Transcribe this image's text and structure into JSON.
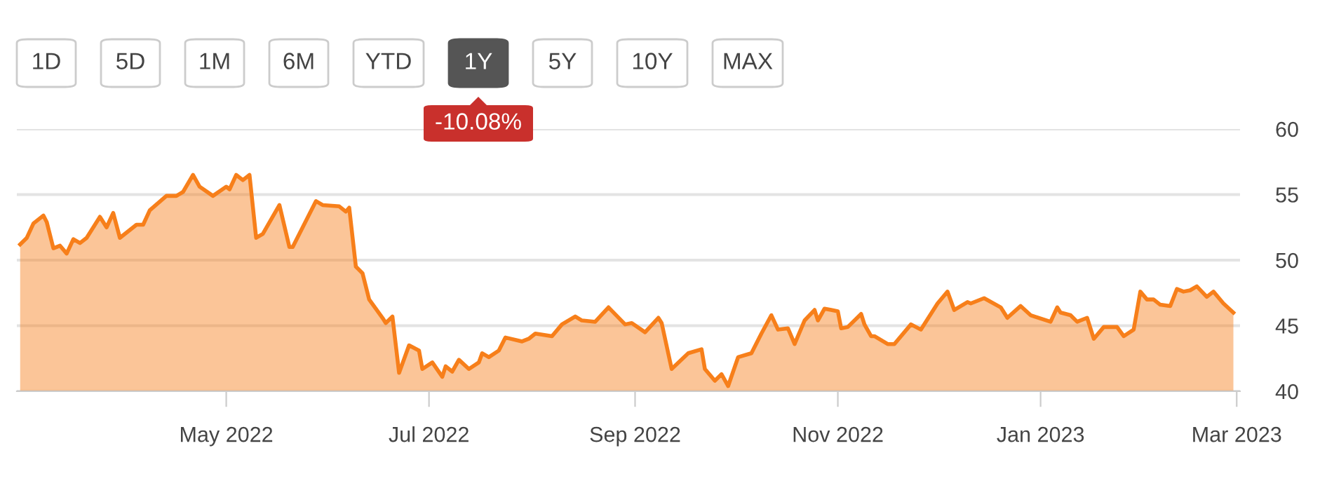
{
  "chart_data": {
    "type": "area",
    "color": "#f77f1a",
    "annotations": [
      "1D",
      "5D",
      "1M",
      "6M",
      "YTD",
      "1Y",
      "5Y",
      "10Y",
      "MAX",
      "-10.08%"
    ],
    "x": [
      "2022-02-28",
      "2022-03-02",
      "2022-03-04",
      "2022-03-07",
      "2022-03-08",
      "2022-03-10",
      "2022-03-12",
      "2022-03-14",
      "2022-03-16",
      "2022-03-18",
      "2022-03-20",
      "2022-03-24",
      "2022-03-26",
      "2022-03-28",
      "2022-03-30",
      "2022-04-04",
      "2022-04-06",
      "2022-04-08",
      "2022-04-13",
      "2022-04-16",
      "2022-04-18",
      "2022-04-21",
      "2022-04-23",
      "2022-04-27",
      "2022-05-01",
      "2022-05-02",
      "2022-05-04",
      "2022-05-06",
      "2022-05-08",
      "2022-05-10",
      "2022-05-12",
      "2022-05-17",
      "2022-05-20",
      "2022-05-21",
      "2022-05-28",
      "2022-05-30",
      "2022-06-04",
      "2022-06-06",
      "2022-06-07",
      "2022-06-09",
      "2022-06-11",
      "2022-06-13",
      "2022-06-17",
      "2022-06-18",
      "2022-06-20",
      "2022-06-22",
      "2022-06-25",
      "2022-06-28",
      "2022-06-29",
      "2022-07-02",
      "2022-07-05",
      "2022-07-06",
      "2022-07-08",
      "2022-07-10",
      "2022-07-13",
      "2022-07-16",
      "2022-07-17",
      "2022-07-19",
      "2022-07-22",
      "2022-07-24",
      "2022-07-29",
      "2022-07-31",
      "2022-08-02",
      "2022-08-07",
      "2022-08-10",
      "2022-08-14",
      "2022-08-16",
      "2022-08-20",
      "2022-08-24",
      "2022-08-29",
      "2022-08-31",
      "2022-09-04",
      "2022-09-08",
      "2022-09-09",
      "2022-09-12",
      "2022-09-17",
      "2022-09-21",
      "2022-09-22",
      "2022-09-25",
      "2022-09-27",
      "2022-09-29",
      "2022-10-02",
      "2022-10-06",
      "2022-10-09",
      "2022-10-12",
      "2022-10-14",
      "2022-10-17",
      "2022-10-19",
      "2022-10-22",
      "2022-10-25",
      "2022-10-26",
      "2022-10-28",
      "2022-10-30",
      "2022-11-01",
      "2022-11-02",
      "2022-11-04",
      "2022-11-08",
      "2022-11-09",
      "2022-11-11",
      "2022-11-12",
      "2022-11-16",
      "2022-11-18",
      "2022-11-23",
      "2022-11-26",
      "2022-12-01",
      "2022-12-04",
      "2022-12-06",
      "2022-12-10",
      "2022-12-11",
      "2022-12-13",
      "2022-12-15",
      "2022-12-20",
      "2022-12-22",
      "2022-12-26",
      "2022-12-29",
      "2023-01-04",
      "2023-01-06",
      "2023-01-07",
      "2023-01-10",
      "2023-01-12",
      "2023-01-15",
      "2023-01-17",
      "2023-01-20",
      "2023-01-24",
      "2023-01-26",
      "2023-01-29",
      "2023-01-31",
      "2023-02-02",
      "2023-02-04",
      "2023-02-06",
      "2023-02-09",
      "2023-02-11",
      "2023-02-13",
      "2023-02-15",
      "2023-02-17",
      "2023-02-20",
      "2023-02-22",
      "2023-02-25",
      "2023-02-28"
    ],
    "values": [
      51.2,
      51.7,
      52.8,
      53.4,
      52.9,
      50.9,
      51.1,
      50.5,
      51.6,
      51.3,
      51.7,
      53.3,
      52.5,
      53.6,
      51.7,
      52.7,
      52.7,
      53.8,
      54.9,
      54.9,
      55.2,
      56.5,
      55.6,
      54.9,
      55.6,
      55.4,
      56.5,
      56.1,
      56.5,
      51.7,
      52.0,
      54.2,
      51.0,
      51.0,
      54.5,
      54.2,
      54.1,
      53.7,
      54.0,
      49.5,
      49.0,
      47.0,
      45.6,
      45.2,
      45.7,
      41.4,
      43.5,
      43.1,
      41.7,
      42.2,
      41.1,
      41.9,
      41.5,
      42.4,
      41.7,
      42.2,
      42.9,
      42.6,
      43.1,
      44.1,
      43.8,
      44.0,
      44.4,
      44.2,
      45.1,
      45.7,
      45.4,
      45.3,
      46.4,
      45.1,
      45.2,
      44.5,
      45.6,
      45.2,
      41.7,
      42.9,
      43.2,
      41.7,
      40.8,
      41.3,
      40.4,
      42.6,
      42.9,
      44.4,
      45.8,
      44.7,
      44.8,
      43.6,
      45.4,
      46.2,
      45.4,
      46.3,
      46.2,
      46.1,
      44.8,
      44.9,
      45.9,
      45.1,
      44.2,
      44.2,
      43.6,
      43.6,
      45.1,
      44.7,
      46.7,
      47.6,
      46.2,
      46.8,
      46.7,
      46.9,
      47.1,
      46.4,
      45.6,
      46.5,
      45.8,
      45.3,
      46.4,
      46.0,
      45.8,
      45.3,
      45.6,
      44.0,
      44.9,
      44.9,
      44.2,
      44.7,
      47.6,
      47.0,
      47.0,
      46.6,
      46.5,
      47.8,
      47.6,
      47.7,
      48.0,
      47.2,
      47.6,
      46.7,
      46.0
    ],
    "xlim": [
      "2022-02-27",
      "2023-03-02"
    ],
    "xticks": [
      {
        "value": "2022-05-01",
        "label": "May 2022"
      },
      {
        "value": "2022-07-01",
        "label": "Jul 2022"
      },
      {
        "value": "2022-09-01",
        "label": "Sep 2022"
      },
      {
        "value": "2022-11-01",
        "label": "Nov 2022"
      },
      {
        "value": "2023-01-01",
        "label": "Jan 2023"
      },
      {
        "value": "2023-03-01",
        "label": "Mar 2023"
      }
    ],
    "ylim": [
      40,
      60
    ],
    "yticks": [
      40,
      45,
      50,
      55,
      60
    ],
    "grid": "y"
  }
}
